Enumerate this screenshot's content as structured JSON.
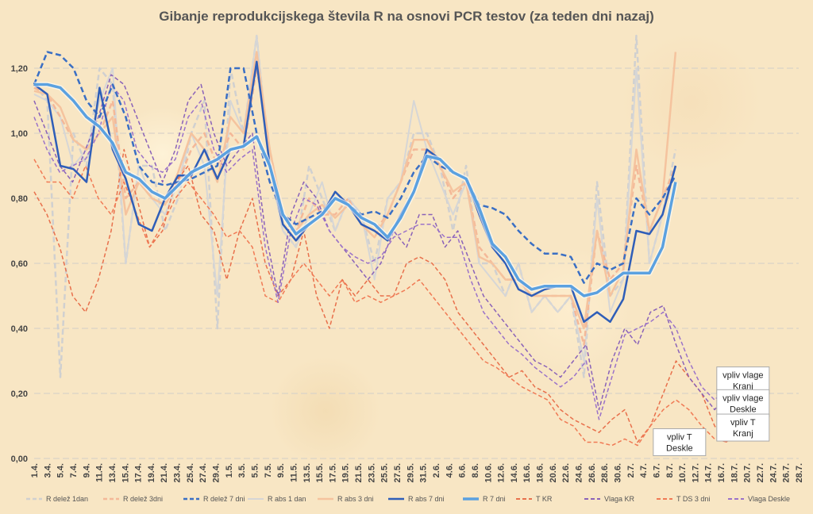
{
  "chart_data": {
    "type": "line",
    "title": "Gibanje reprodukcijskega števila R na osnovi PCR testov (za teden dni nazaj)",
    "ylim": [
      0,
      1.3
    ],
    "yticks": [
      "0,00",
      "0,20",
      "0,40",
      "0,60",
      "0,80",
      "1,00",
      "1,20"
    ],
    "grid": true,
    "legend_position": "bottom",
    "x_labels": [
      "1.4.",
      "3.4.",
      "5.4.",
      "7.4.",
      "9.4.",
      "11.4.",
      "13.4.",
      "15.4.",
      "17.4.",
      "19.4.",
      "21.4.",
      "23.4.",
      "25.4.",
      "27.4.",
      "29.4.",
      "1.5.",
      "3.5.",
      "5.5.",
      "7.5.",
      "9.5.",
      "11.5.",
      "13.5.",
      "15.5.",
      "17.5.",
      "19.5.",
      "21.5.",
      "23.5.",
      "25.5.",
      "27.5.",
      "29.5.",
      "31.5.",
      "2.6.",
      "4.6.",
      "6.6.",
      "8.6.",
      "10.6.",
      "12.6.",
      "14.6.",
      "16.6.",
      "18.6.",
      "20.6.",
      "22.6.",
      "24.6.",
      "26.6.",
      "28.6.",
      "30.6.",
      "2.7.",
      "4.7.",
      "6.7.",
      "8.7.",
      "10.7.",
      "12.7.",
      "14.7.",
      "16.7.",
      "18.7.",
      "20.7.",
      "22.7.",
      "24.7.",
      "26.7.",
      "28.7."
    ],
    "series": [
      {
        "name": "R delež 1dan",
        "color": "#d0d0d0",
        "style": "dash",
        "width": 2.5,
        "values": [
          1.15,
          1.1,
          0.25,
          1.0,
          0.9,
          1.2,
          1.15,
          0.6,
          0.9,
          0.9,
          0.7,
          0.8,
          1.0,
          1.1,
          0.4,
          1.2,
          1.0,
          1.3,
          0.9,
          0.7,
          0.65,
          0.9,
          0.8,
          0.7,
          0.8,
          0.75,
          0.6,
          0.8,
          0.85,
          1.0,
          1.0,
          0.9,
          0.7,
          0.9,
          0.6,
          0.6,
          0.5,
          0.6,
          0.45,
          0.5,
          0.45,
          0.5,
          0.25,
          0.85,
          0.5,
          0.55,
          1.3,
          0.6,
          0.75,
          0.95
        ]
      },
      {
        "name": "R delež 3dni",
        "color": "#f4b898",
        "style": "dash",
        "width": 2.5,
        "values": [
          1.14,
          1.12,
          1.05,
          0.98,
          0.95,
          1.0,
          1.1,
          0.8,
          0.85,
          0.8,
          0.78,
          0.85,
          0.95,
          1.0,
          0.9,
          1.0,
          0.95,
          1.2,
          0.95,
          0.75,
          0.7,
          0.8,
          0.75,
          0.75,
          0.8,
          0.72,
          0.7,
          0.75,
          0.85,
          0.95,
          0.95,
          0.9,
          0.8,
          0.85,
          0.65,
          0.6,
          0.55,
          0.55,
          0.5,
          0.5,
          0.5,
          0.5,
          0.35,
          0.7,
          0.55,
          0.6,
          0.9,
          0.7,
          0.8,
          0.9
        ]
      },
      {
        "name": "R delež 7 dni",
        "color": "#3a6fc4",
        "style": "dash",
        "width": 2.5,
        "values": [
          1.15,
          1.25,
          1.24,
          1.2,
          1.1,
          1.05,
          1.15,
          1.05,
          0.9,
          0.85,
          0.84,
          0.85,
          0.86,
          0.88,
          0.9,
          1.2,
          1.2,
          1.0,
          0.85,
          0.75,
          0.72,
          0.74,
          0.76,
          0.8,
          0.78,
          0.75,
          0.76,
          0.74,
          0.8,
          0.88,
          0.93,
          0.9,
          0.88,
          0.86,
          0.78,
          0.77,
          0.75,
          0.7,
          0.66,
          0.63,
          0.63,
          0.62,
          0.54,
          0.6,
          0.58,
          0.6,
          0.8,
          0.75,
          0.8,
          0.87
        ]
      },
      {
        "name": "R abs 1 dan",
        "color": "#d6d6d6",
        "style": "solid",
        "width": 2,
        "values": [
          1.12,
          1.1,
          1.05,
          0.9,
          0.95,
          1.1,
          1.2,
          0.6,
          0.9,
          0.8,
          0.75,
          0.85,
          1.0,
          0.9,
          0.5,
          1.1,
          1.0,
          1.3,
          0.9,
          0.7,
          0.65,
          0.75,
          0.85,
          0.7,
          0.8,
          0.75,
          0.55,
          0.8,
          0.85,
          1.1,
          0.95,
          0.85,
          0.75,
          0.85,
          0.6,
          0.55,
          0.5,
          0.6,
          0.45,
          0.5,
          0.45,
          0.5,
          0.3,
          0.8,
          0.45,
          0.55,
          1.2,
          0.6,
          0.75,
          0.9
        ]
      },
      {
        "name": "R abs 3 dni",
        "color": "#f5c39e",
        "style": "solid",
        "width": 2.5,
        "values": [
          1.13,
          1.12,
          1.08,
          0.98,
          0.95,
          1.0,
          1.05,
          0.75,
          0.85,
          0.8,
          0.78,
          0.88,
          1.0,
          0.95,
          0.85,
          1.05,
          1.0,
          1.25,
          0.95,
          0.75,
          0.7,
          0.75,
          0.78,
          0.74,
          0.78,
          0.72,
          0.68,
          0.75,
          0.85,
          0.98,
          0.98,
          0.9,
          0.82,
          0.85,
          0.62,
          0.6,
          0.55,
          0.55,
          0.5,
          0.5,
          0.5,
          0.5,
          0.4,
          0.7,
          0.5,
          0.58,
          0.95,
          0.7,
          0.8,
          1.25
        ]
      },
      {
        "name": "R abs 7 dni",
        "color": "#2f5eb8",
        "style": "solid",
        "width": 2.5,
        "values": [
          1.15,
          1.12,
          0.9,
          0.89,
          0.85,
          1.14,
          0.95,
          0.86,
          0.72,
          0.7,
          0.8,
          0.87,
          0.87,
          0.95,
          0.86,
          0.95,
          0.96,
          1.22,
          0.9,
          0.72,
          0.67,
          0.72,
          0.75,
          0.82,
          0.78,
          0.72,
          0.7,
          0.67,
          0.75,
          0.82,
          0.95,
          0.92,
          0.88,
          0.86,
          0.75,
          0.65,
          0.6,
          0.52,
          0.5,
          0.52,
          0.53,
          0.53,
          0.42,
          0.45,
          0.42,
          0.49,
          0.7,
          0.69,
          0.75,
          0.9
        ]
      },
      {
        "name": "R 7 dni",
        "color": "#5ba1e0",
        "style": "solid",
        "width": 3.5,
        "values": [
          1.15,
          1.15,
          1.14,
          1.1,
          1.05,
          1.02,
          0.97,
          0.88,
          0.86,
          0.82,
          0.8,
          0.84,
          0.88,
          0.9,
          0.92,
          0.95,
          0.96,
          0.99,
          0.9,
          0.75,
          0.69,
          0.72,
          0.75,
          0.8,
          0.78,
          0.74,
          0.72,
          0.68,
          0.74,
          0.82,
          0.93,
          0.92,
          0.88,
          0.86,
          0.77,
          0.66,
          0.62,
          0.55,
          0.52,
          0.53,
          0.53,
          0.53,
          0.5,
          0.51,
          0.54,
          0.57,
          0.57,
          0.57,
          0.65,
          0.85
        ]
      },
      {
        "name": "T KR",
        "color": "#e8704c",
        "style": "dash",
        "width": 1.5,
        "values": [
          0.82,
          0.75,
          0.65,
          0.5,
          0.45,
          0.55,
          0.7,
          0.95,
          0.8,
          0.65,
          0.7,
          0.85,
          0.9,
          0.75,
          0.7,
          0.55,
          0.7,
          0.8,
          0.6,
          0.5,
          0.55,
          0.7,
          0.5,
          0.4,
          0.55,
          0.5,
          0.55,
          0.5,
          0.5,
          0.6,
          0.62,
          0.6,
          0.55,
          0.45,
          0.4,
          0.35,
          0.3,
          0.25,
          0.27,
          0.22,
          0.2,
          0.15,
          0.12,
          0.1,
          0.08,
          0.12,
          0.15,
          0.05,
          0.1,
          0.2,
          0.3,
          0.25,
          0.2,
          0.1,
          0.05
        ]
      },
      {
        "name": "Vlaga KR",
        "color": "#8a62b8",
        "style": "dash",
        "width": 1.5,
        "values": [
          1.1,
          1.0,
          0.9,
          0.85,
          0.95,
          1.05,
          1.18,
          1.15,
          1.05,
          0.95,
          0.85,
          0.95,
          1.1,
          1.15,
          1.0,
          0.9,
          0.95,
          1.0,
          0.7,
          0.5,
          0.75,
          0.85,
          0.8,
          0.7,
          0.65,
          0.6,
          0.55,
          0.6,
          0.7,
          0.65,
          0.75,
          0.75,
          0.65,
          0.7,
          0.6,
          0.5,
          0.45,
          0.4,
          0.35,
          0.3,
          0.28,
          0.25,
          0.3,
          0.35,
          0.15,
          0.3,
          0.4,
          0.35,
          0.45,
          0.47,
          0.35,
          0.25,
          0.2,
          0.15,
          0.2
        ]
      },
      {
        "name": "T DS 3 dni",
        "color": "#f07a55",
        "style": "dash",
        "width": 1.5,
        "values": [
          0.92,
          0.85,
          0.85,
          0.8,
          0.9,
          0.8,
          0.75,
          0.85,
          0.75,
          0.65,
          0.72,
          0.8,
          0.85,
          0.8,
          0.75,
          0.68,
          0.7,
          0.65,
          0.5,
          0.48,
          0.55,
          0.6,
          0.55,
          0.5,
          0.55,
          0.48,
          0.5,
          0.48,
          0.5,
          0.52,
          0.55,
          0.5,
          0.45,
          0.4,
          0.35,
          0.3,
          0.28,
          0.25,
          0.22,
          0.2,
          0.18,
          0.12,
          0.1,
          0.05,
          0.05,
          0.04,
          0.06,
          0.04,
          0.1,
          0.15,
          0.18,
          0.15,
          0.1,
          0.06,
          0.05
        ]
      },
      {
        "name": "Vlaga Deskle",
        "color": "#9b72c9",
        "style": "dash",
        "width": 1.5,
        "values": [
          1.05,
          0.95,
          0.88,
          0.9,
          0.92,
          1.0,
          1.15,
          1.1,
          0.95,
          0.9,
          0.88,
          0.92,
          1.05,
          1.1,
          0.95,
          0.88,
          0.92,
          0.95,
          0.65,
          0.48,
          0.7,
          0.8,
          0.78,
          0.7,
          0.65,
          0.62,
          0.6,
          0.62,
          0.68,
          0.7,
          0.72,
          0.72,
          0.68,
          0.68,
          0.55,
          0.45,
          0.4,
          0.35,
          0.32,
          0.28,
          0.25,
          0.22,
          0.25,
          0.3,
          0.12,
          0.25,
          0.38,
          0.4,
          0.42,
          0.45,
          0.4,
          0.3,
          0.22,
          0.18,
          0.22
        ]
      }
    ],
    "annotations": [
      {
        "text": "vpliv vlage\nKranj",
        "x_index": 55.2,
        "y": 0.24
      },
      {
        "text": "vpliv vlage\nDeskle",
        "x_index": 55.2,
        "y": 0.17
      },
      {
        "text": "vpliv T\nKranj",
        "x_index": 55.2,
        "y": 0.095
      },
      {
        "text": "vpliv T\nDeskle",
        "x_index": 50.3,
        "y": 0.05
      }
    ]
  }
}
